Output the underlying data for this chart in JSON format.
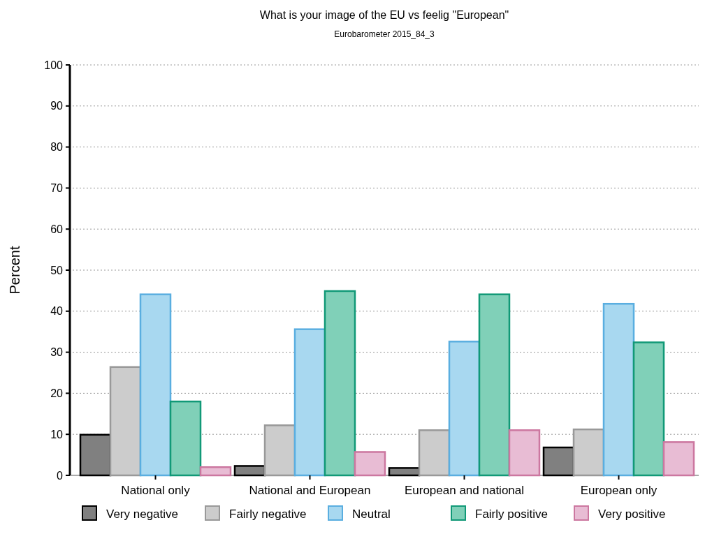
{
  "chart_data": {
    "type": "bar",
    "title": "What is your image of the EU vs feelig \"European\"",
    "subtitle": "Eurobarometer 2015_84_3",
    "ylabel": "Percent",
    "categories": [
      "National only",
      "National and European",
      "European and national",
      "European only"
    ],
    "series": [
      {
        "name": "Very negative",
        "color": "#808080",
        "values": [
          9.9,
          2.3,
          1.8,
          6.8
        ]
      },
      {
        "name": "Fairly negative",
        "color": "#cccccc",
        "values": [
          26.4,
          12.2,
          11.0,
          11.2
        ]
      },
      {
        "name": "Neutral",
        "color": "#a8d8f0",
        "values": [
          44.1,
          35.6,
          32.6,
          41.8
        ]
      },
      {
        "name": "Fairly positive",
        "color": "#80d0b8",
        "values": [
          18.0,
          44.9,
          44.1,
          32.4
        ]
      },
      {
        "name": "Very positive",
        "color": "#e8bcd4",
        "values": [
          2.0,
          5.7,
          11.0,
          8.1
        ]
      }
    ],
    "ylim": [
      0,
      100
    ],
    "yticks": [
      0,
      10,
      20,
      30,
      40,
      50,
      60,
      70,
      80,
      90,
      100
    ],
    "grid": "y",
    "legend": "bottom"
  }
}
